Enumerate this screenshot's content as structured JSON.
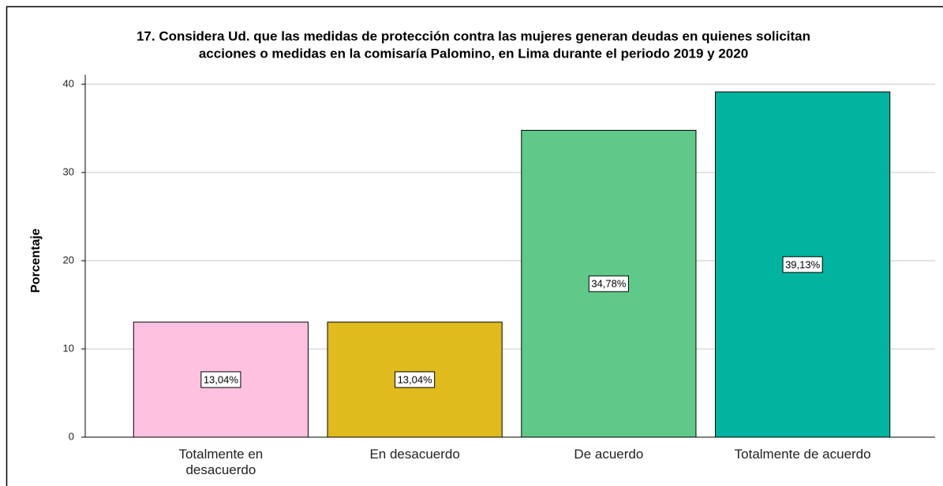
{
  "chart_data": {
    "type": "bar",
    "title": [
      "17. Considera Ud. que las medidas de protección contra las mujeres generan deudas en quienes solicitan",
      "acciones o medidas en la comisaría Palomino, en Lima durante el periodo 2019 y 2020"
    ],
    "ylabel": "Porcentaje",
    "categories": [
      "Totalmente en desacuerdo",
      "En desacuerdo",
      "De acuerdo",
      "Totalmente de acuerdo"
    ],
    "values": [
      13.04,
      13.04,
      34.78,
      39.13
    ],
    "value_labels": [
      "13,04%",
      "13,04%",
      "34,78%",
      "39,13%"
    ],
    "colors": [
      "#ffc1e0",
      "#dfbb1e",
      "#5fc98a",
      "#00b4a0"
    ],
    "ylim": [
      0,
      40
    ],
    "yticks": [
      0,
      10,
      20,
      30,
      40
    ],
    "grid": true
  }
}
